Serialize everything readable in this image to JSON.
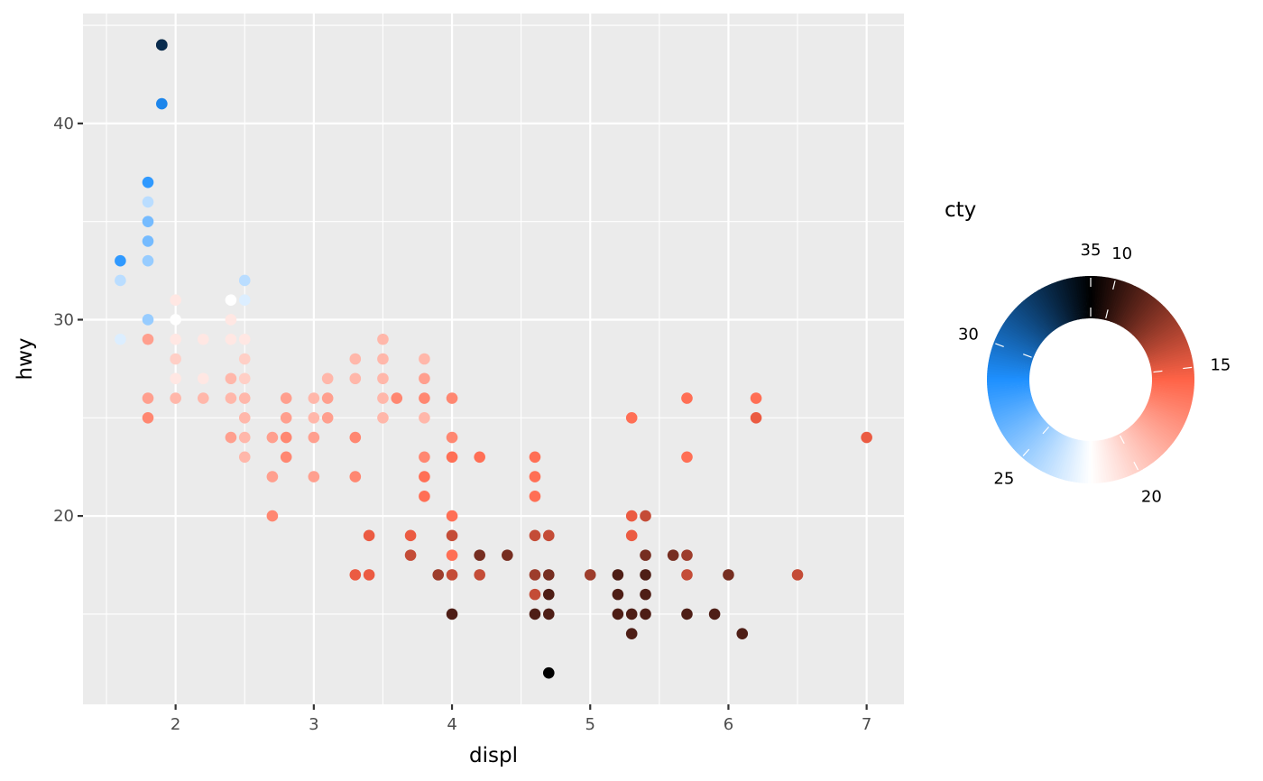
{
  "chart_data": {
    "type": "scatter",
    "xlabel": "displ",
    "ylabel": "hwy",
    "xlim": [
      1.33,
      7.27
    ],
    "ylim": [
      10.4,
      45.6
    ],
    "x_ticks": [
      2,
      3,
      4,
      5,
      6,
      7
    ],
    "y_ticks": [
      20,
      30,
      40
    ],
    "grid": true,
    "legend": {
      "title": "cty",
      "placement": "right",
      "type": "circular-colorbar",
      "min": 9,
      "max": 35,
      "labels": [
        "10",
        "15",
        "20",
        "25",
        "30",
        "35"
      ],
      "label_values": [
        10,
        15,
        20,
        25,
        30,
        35
      ]
    },
    "colors": {
      "panel": "#ebebeb",
      "grid": "#ffffff",
      "low": "#000000",
      "mid_low": "#ff6347",
      "middle": "#ffffff",
      "mid_high": "#1e90ff",
      "high": "#000000"
    },
    "points": [
      [
        1.9,
        44,
        35
      ],
      [
        1.9,
        44,
        33
      ],
      [
        1.9,
        41,
        29
      ],
      [
        1.8,
        37,
        28
      ],
      [
        1.8,
        36,
        24
      ],
      [
        1.8,
        35,
        26
      ],
      [
        1.8,
        34,
        26
      ],
      [
        1.8,
        33,
        25
      ],
      [
        1.8,
        30,
        25
      ],
      [
        1.8,
        29,
        18
      ],
      [
        1.8,
        26,
        18
      ],
      [
        1.8,
        25,
        17
      ],
      [
        1.6,
        33,
        28
      ],
      [
        1.6,
        32,
        24
      ],
      [
        1.6,
        29,
        23
      ],
      [
        2.0,
        31,
        21
      ],
      [
        2.0,
        30,
        22
      ],
      [
        2.0,
        29,
        21
      ],
      [
        2.0,
        28,
        20
      ],
      [
        2.0,
        27,
        21
      ],
      [
        2.0,
        26,
        19
      ],
      [
        2.2,
        29,
        21
      ],
      [
        2.2,
        27,
        21
      ],
      [
        2.2,
        26,
        19
      ],
      [
        2.4,
        31,
        22
      ],
      [
        2.4,
        30,
        21
      ],
      [
        2.4,
        29,
        21
      ],
      [
        2.4,
        27,
        19
      ],
      [
        2.4,
        26,
        19
      ],
      [
        2.4,
        24,
        18
      ],
      [
        2.5,
        32,
        24
      ],
      [
        2.5,
        31,
        23
      ],
      [
        2.5,
        29,
        21
      ],
      [
        2.5,
        28,
        20
      ],
      [
        2.5,
        27,
        20
      ],
      [
        2.5,
        26,
        19
      ],
      [
        2.5,
        25,
        19
      ],
      [
        2.5,
        24,
        19
      ],
      [
        2.5,
        23,
        19
      ],
      [
        2.7,
        24,
        18
      ],
      [
        2.7,
        22,
        18
      ],
      [
        2.7,
        20,
        17
      ],
      [
        2.8,
        26,
        18
      ],
      [
        2.8,
        25,
        18
      ],
      [
        2.8,
        24,
        17
      ],
      [
        2.8,
        23,
        17
      ],
      [
        3.0,
        26,
        19
      ],
      [
        3.0,
        25,
        19
      ],
      [
        3.0,
        24,
        18
      ],
      [
        3.0,
        22,
        18
      ],
      [
        3.1,
        27,
        19
      ],
      [
        3.1,
        26,
        18
      ],
      [
        3.1,
        25,
        18
      ],
      [
        3.3,
        28,
        19
      ],
      [
        3.3,
        27,
        19
      ],
      [
        3.3,
        24,
        17
      ],
      [
        3.3,
        22,
        17
      ],
      [
        3.3,
        17,
        15
      ],
      [
        3.4,
        19,
        15
      ],
      [
        3.4,
        17,
        15
      ],
      [
        3.5,
        29,
        19
      ],
      [
        3.5,
        28,
        19
      ],
      [
        3.5,
        27,
        19
      ],
      [
        3.5,
        26,
        19
      ],
      [
        3.5,
        25,
        19
      ],
      [
        3.6,
        26,
        17
      ],
      [
        3.7,
        19,
        15
      ],
      [
        3.7,
        18,
        14
      ],
      [
        3.8,
        28,
        19
      ],
      [
        3.8,
        27,
        18
      ],
      [
        3.8,
        26,
        17
      ],
      [
        3.8,
        25,
        19
      ],
      [
        3.8,
        23,
        17
      ],
      [
        3.8,
        22,
        16
      ],
      [
        3.8,
        21,
        16
      ],
      [
        3.9,
        17,
        13
      ],
      [
        4.0,
        26,
        17
      ],
      [
        4.0,
        24,
        17
      ],
      [
        4.0,
        23,
        16
      ],
      [
        4.0,
        20,
        16
      ],
      [
        4.0,
        19,
        14
      ],
      [
        4.0,
        18,
        16
      ],
      [
        4.0,
        17,
        14
      ],
      [
        4.0,
        15,
        11
      ],
      [
        4.2,
        23,
        16
      ],
      [
        4.2,
        18,
        12
      ],
      [
        4.2,
        17,
        14
      ],
      [
        4.4,
        18,
        12
      ],
      [
        4.6,
        23,
        16
      ],
      [
        4.6,
        22,
        16
      ],
      [
        4.6,
        21,
        16
      ],
      [
        4.6,
        19,
        14
      ],
      [
        4.6,
        17,
        13
      ],
      [
        4.6,
        16,
        14
      ],
      [
        4.6,
        15,
        11
      ],
      [
        4.7,
        19,
        14
      ],
      [
        4.7,
        17,
        12
      ],
      [
        4.7,
        16,
        11
      ],
      [
        4.7,
        15,
        11
      ],
      [
        4.7,
        12,
        9
      ],
      [
        5.0,
        17,
        13
      ],
      [
        5.2,
        17,
        11
      ],
      [
        5.2,
        16,
        11
      ],
      [
        5.2,
        15,
        11
      ],
      [
        5.3,
        25,
        16
      ],
      [
        5.3,
        20,
        15
      ],
      [
        5.3,
        19,
        15
      ],
      [
        5.3,
        15,
        11
      ],
      [
        5.3,
        14,
        11
      ],
      [
        5.4,
        20,
        14
      ],
      [
        5.4,
        18,
        12
      ],
      [
        5.4,
        17,
        11
      ],
      [
        5.4,
        16,
        11
      ],
      [
        5.4,
        15,
        11
      ],
      [
        5.6,
        18,
        12
      ],
      [
        5.7,
        26,
        16
      ],
      [
        5.7,
        23,
        16
      ],
      [
        5.7,
        18,
        13
      ],
      [
        5.7,
        17,
        14
      ],
      [
        5.7,
        15,
        11
      ],
      [
        5.9,
        15,
        11
      ],
      [
        6.0,
        17,
        12
      ],
      [
        6.1,
        14,
        11
      ],
      [
        6.2,
        26,
        16
      ],
      [
        6.2,
        25,
        15
      ],
      [
        6.5,
        17,
        14
      ],
      [
        7.0,
        24,
        15
      ]
    ]
  }
}
